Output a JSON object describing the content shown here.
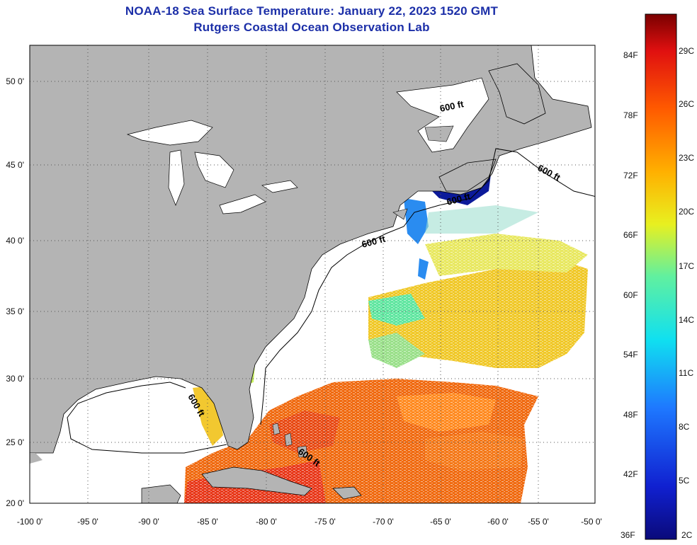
{
  "header": {
    "title_line1": "NOAA-18 Sea Surface Temperature:  January 22, 2023 1520 GMT",
    "title_line2": "Rutgers Coastal Ocean Observation Lab"
  },
  "axes": {
    "x_ticks": [
      "-100 0'",
      "-95 0'",
      "-90 0'",
      "-85 0'",
      "-80 0'",
      "-75 0'",
      "-70 0'",
      "-65 0'",
      "-60 0'",
      "-55 0'",
      "-50 0'"
    ],
    "y_ticks": [
      "50 0'",
      "45 0'",
      "40 0'",
      "35 0'",
      "30 0'",
      "25 0'",
      "20 0'"
    ],
    "lon_range": [
      -100,
      -50
    ],
    "lat_range": [
      20,
      52.5
    ]
  },
  "contour": {
    "label": "600 ft"
  },
  "colorbar": {
    "f_labels": [
      "84F",
      "78F",
      "72F",
      "66F",
      "60F",
      "54F",
      "48F",
      "42F",
      "36F"
    ],
    "c_labels": [
      "29C",
      "26C",
      "23C",
      "20C",
      "17C",
      "14C",
      "11C",
      "8C",
      "5C",
      "2C"
    ]
  },
  "colors": {
    "land": "#b4b4b4",
    "ocean_nodata": "#ffffff",
    "title": "#1c2fa8",
    "gridline": "#555555"
  }
}
